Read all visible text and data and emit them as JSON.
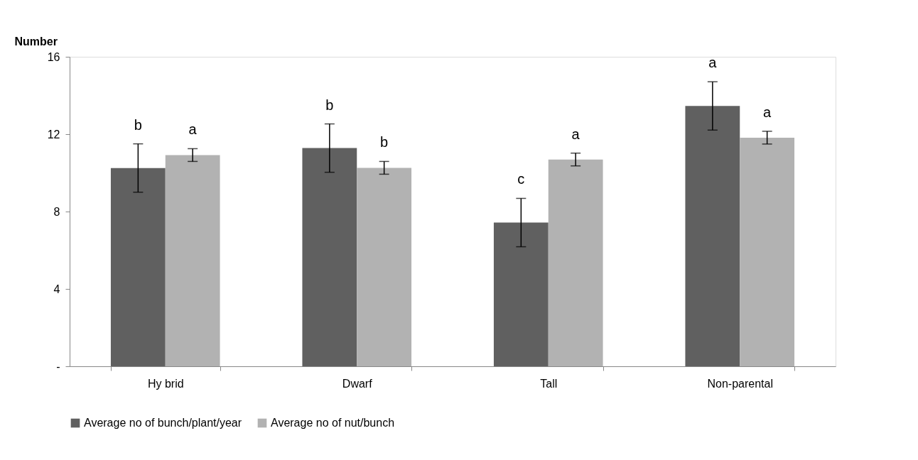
{
  "chart_data": {
    "type": "bar",
    "ylabel": "Number",
    "categories": [
      "Hy brid",
      "Dwarf",
      "Tall",
      "Non-parental"
    ],
    "series": [
      {
        "name": "Average no of bunch/plant/year",
        "color": "#606060",
        "values": [
          10.25,
          11.28,
          7.43,
          13.46
        ],
        "errors": [
          1.25,
          1.25,
          1.25,
          1.25
        ]
      },
      {
        "name": "Average no of nut/bunch",
        "color": "#b2b2b2",
        "values": [
          10.92,
          10.26,
          10.69,
          11.82
        ],
        "errors": [
          0.33,
          0.33,
          0.33,
          0.33
        ]
      }
    ],
    "ylim": [
      0,
      16
    ],
    "yticks": [
      {
        "value": 0,
        "label": "-"
      },
      4,
      8,
      12,
      16
    ],
    "grid": false,
    "legend": "bottom",
    "annotations": [
      "b",
      "a",
      "b",
      "b",
      "c",
      "a",
      "a",
      "a"
    ]
  }
}
